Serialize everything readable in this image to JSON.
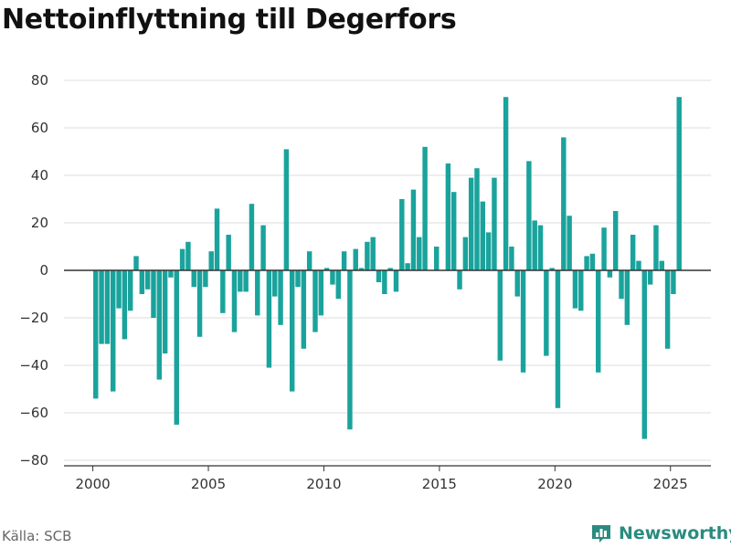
{
  "title": "Nettoinflyttning till Degerfors",
  "source": "Källa: SCB",
  "logo_text": "Newsworthy",
  "colors": {
    "bar": "#1aa39c",
    "logo": "#2a8b80",
    "grid": "#dddddd",
    "zero": "#333333",
    "axis": "#333333"
  },
  "chart_data": {
    "type": "bar",
    "title": "Nettoinflyttning till Degerfors",
    "xlabel": "",
    "ylabel": "",
    "xlim": [
      1998.75,
      2026.75
    ],
    "ylim": [
      -80,
      80
    ],
    "x_ticks": [
      2000,
      2005,
      2010,
      2015,
      2020,
      2025
    ],
    "y_ticks": [
      80,
      60,
      40,
      20,
      0,
      -20,
      -40,
      -60,
      -80
    ],
    "grid": true,
    "x": [
      2000.125,
      2000.375,
      2000.625,
      2000.875,
      2001.125,
      2001.375,
      2001.625,
      2001.875,
      2002.125,
      2002.375,
      2002.625,
      2002.875,
      2003.125,
      2003.375,
      2003.625,
      2003.875,
      2004.125,
      2004.375,
      2004.625,
      2004.875,
      2005.125,
      2005.375,
      2005.625,
      2005.875,
      2006.125,
      2006.375,
      2006.625,
      2006.875,
      2007.125,
      2007.375,
      2007.625,
      2007.875,
      2008.125,
      2008.375,
      2008.625,
      2008.875,
      2009.125,
      2009.375,
      2009.625,
      2009.875,
      2010.125,
      2010.375,
      2010.625,
      2010.875,
      2011.125,
      2011.375,
      2011.625,
      2011.875,
      2012.125,
      2012.375,
      2012.625,
      2012.875,
      2013.125,
      2013.375,
      2013.625,
      2013.875,
      2014.125,
      2014.375,
      2014.625,
      2014.875,
      2015.125,
      2015.375,
      2015.625,
      2015.875,
      2016.125,
      2016.375,
      2016.625,
      2016.875,
      2017.125,
      2017.375,
      2017.625,
      2017.875,
      2018.125,
      2018.375,
      2018.625,
      2018.875,
      2019.125,
      2019.375,
      2019.625,
      2019.875,
      2020.125,
      2020.375,
      2020.625,
      2020.875,
      2021.125,
      2021.375,
      2021.625,
      2021.875,
      2022.125,
      2022.375,
      2022.625,
      2022.875,
      2023.125,
      2023.375,
      2023.625,
      2023.875,
      2024.125,
      2024.375,
      2024.625,
      2024.875,
      2025.125,
      2025.375
    ],
    "values": [
      -54,
      -31,
      -31,
      -51,
      -16,
      -29,
      -17,
      6,
      -10,
      -8,
      -20,
      -46,
      -35,
      -3,
      -65,
      9,
      12,
      -7,
      -28,
      -7,
      8,
      26,
      -18,
      15,
      -26,
      -9,
      -9,
      28,
      -19,
      19,
      -41,
      -11,
      -23,
      51,
      -51,
      -7,
      -33,
      8,
      -26,
      -19,
      1,
      -6,
      -12,
      8,
      -67,
      9,
      1,
      12,
      14,
      -5,
      -10,
      1,
      -9,
      30,
      3,
      34,
      14,
      52,
      0,
      10,
      0,
      45,
      33,
      -8,
      14,
      39,
      43,
      29,
      16,
      39,
      -38,
      73,
      10,
      -11,
      -43,
      46,
      21,
      19,
      -36,
      1,
      -58,
      56,
      23,
      -16,
      -17,
      6,
      7,
      -43,
      18,
      -3,
      25,
      -12,
      -23,
      15,
      4,
      -71,
      -6,
      19,
      4,
      -33,
      -10,
      73
    ]
  }
}
